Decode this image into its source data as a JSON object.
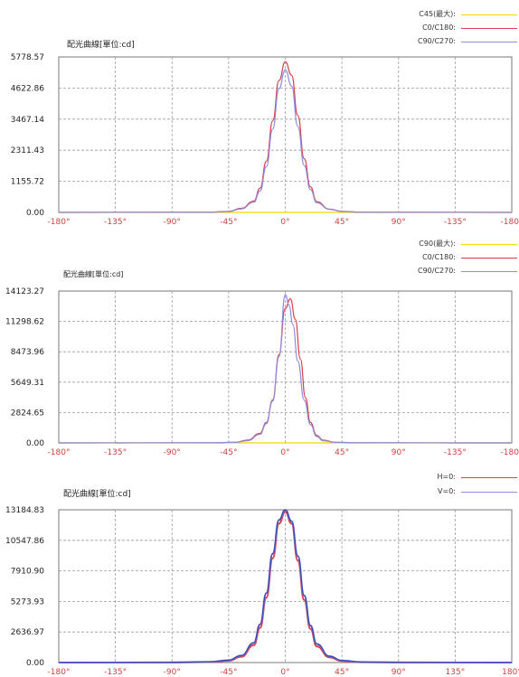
{
  "colors": {
    "yellow": "#f5d800",
    "red": "#d9404a",
    "purple": "#8f8ce0",
    "blue": "#2f3fa8",
    "grid": "#9a9a9a",
    "tick_red": "#d04040"
  },
  "chart_data": [
    {
      "type": "line",
      "title": "配光曲線[單位:cd]",
      "x_ticks": [
        "-180°",
        "-135°",
        "-90°",
        "-45°",
        "0°",
        "45°",
        "90°",
        "-135°",
        "-180°"
      ],
      "y_ticks": [
        "5778.57",
        "4622.86",
        "3467.14",
        "2311.43",
        "1155.72",
        "0.00"
      ],
      "ylim": [
        0,
        5778.57
      ],
      "xlim": [
        -180,
        180
      ],
      "grid": true,
      "legend_position": "top-right",
      "series": [
        {
          "name": "C45(最大):",
          "color": "yellow",
          "x": [
            -180,
            -60,
            -40,
            -30,
            -20,
            -15,
            -10,
            -5,
            0,
            5,
            10,
            15,
            20,
            30,
            40,
            60,
            180
          ],
          "values": [
            0,
            0,
            0,
            0,
            0,
            0,
            0,
            0,
            0,
            0,
            0,
            0,
            0,
            0,
            0,
            0,
            0
          ]
        },
        {
          "name": "C0/C180:",
          "color": "red",
          "x": [
            -180,
            -60,
            -45,
            -35,
            -25,
            -20,
            -15,
            -10,
            -5,
            0,
            5,
            10,
            15,
            20,
            25,
            35,
            45,
            60,
            180
          ],
          "values": [
            0,
            10,
            40,
            150,
            420,
            900,
            1900,
            3400,
            4900,
            5600,
            5100,
            3600,
            2000,
            950,
            400,
            120,
            40,
            10,
            0
          ]
        },
        {
          "name": "C90/C270:",
          "color": "purple",
          "x": [
            -180,
            -60,
            -45,
            -35,
            -25,
            -20,
            -15,
            -10,
            -5,
            0,
            5,
            10,
            15,
            20,
            25,
            35,
            45,
            60,
            180
          ],
          "values": [
            0,
            8,
            35,
            130,
            380,
            800,
            1700,
            3100,
            4600,
            5300,
            4700,
            3200,
            1750,
            850,
            360,
            110,
            35,
            8,
            0
          ]
        }
      ]
    },
    {
      "type": "line",
      "title": "配光曲線[單位:cd]",
      "x_ticks": [
        "-180°",
        "-135°",
        "-90°",
        "-45°",
        "0°",
        "45°",
        "90°",
        "-135°",
        "-180°"
      ],
      "y_ticks": [
        "14123.27",
        "11298.62",
        "8473.96",
        "5649.31",
        "2824.65",
        "0.00"
      ],
      "ylim": [
        0,
        14123.27
      ],
      "xlim": [
        -180,
        180
      ],
      "grid": true,
      "legend_position": "top-right",
      "series": [
        {
          "name": "C90(最大):",
          "color": "yellow",
          "x": [
            -180,
            -60,
            -30,
            0,
            30,
            60,
            180
          ],
          "values": [
            0,
            0,
            0,
            0,
            0,
            0,
            0
          ]
        },
        {
          "name": "C0/C180:",
          "color": "red",
          "x": [
            -180,
            -60,
            -40,
            -30,
            -20,
            -15,
            -10,
            -5,
            0,
            4,
            8,
            12,
            16,
            20,
            25,
            30,
            40,
            60,
            180
          ],
          "values": [
            0,
            10,
            60,
            250,
            900,
            1900,
            4000,
            8200,
            12500,
            13400,
            11500,
            7800,
            4200,
            1900,
            700,
            250,
            60,
            10,
            0
          ]
        },
        {
          "name": "C90/C270:",
          "color": "purple",
          "x": [
            -180,
            -60,
            -40,
            -30,
            -20,
            -15,
            -10,
            -5,
            0,
            3,
            6,
            10,
            15,
            20,
            25,
            30,
            40,
            60,
            180
          ],
          "values": [
            0,
            10,
            50,
            200,
            800,
            1800,
            3900,
            8000,
            13800,
            12800,
            11000,
            7600,
            4000,
            1700,
            600,
            200,
            50,
            10,
            0
          ]
        }
      ]
    },
    {
      "type": "line",
      "title": "配光曲線[單位:cd]",
      "x_ticks": [
        "-180°",
        "-135°",
        "-90°",
        "-45°",
        "0°",
        "45°",
        "90°",
        "135°",
        "180°"
      ],
      "y_ticks": [
        "13184.83",
        "10547.86",
        "7910.90",
        "5273.93",
        "2636.97",
        "0.00"
      ],
      "ylim": [
        0,
        13184.83
      ],
      "xlim": [
        -180,
        180
      ],
      "grid": true,
      "legend_position": "top-right",
      "series": [
        {
          "name": "H=0:",
          "color": "red",
          "x": [
            -180,
            -95,
            -60,
            -45,
            -35,
            -25,
            -20,
            -15,
            -10,
            -5,
            0,
            5,
            10,
            15,
            20,
            25,
            35,
            45,
            60,
            95,
            180
          ],
          "values": [
            0,
            5,
            40,
            150,
            500,
            1500,
            3000,
            5600,
            9000,
            12000,
            13000,
            12000,
            8800,
            5400,
            2900,
            1400,
            450,
            130,
            35,
            5,
            0
          ]
        },
        {
          "name": "V=0:",
          "color": "purple",
          "x": [
            -180,
            -95,
            -60,
            -45,
            -35,
            -25,
            -20,
            -15,
            -10,
            -5,
            0,
            5,
            10,
            15,
            20,
            25,
            35,
            45,
            60,
            95,
            180
          ],
          "values": [
            0,
            10,
            60,
            200,
            600,
            1700,
            3300,
            6000,
            9400,
            12300,
            13180,
            12200,
            9200,
            5800,
            3200,
            1600,
            550,
            170,
            50,
            10,
            0
          ]
        }
      ]
    }
  ]
}
